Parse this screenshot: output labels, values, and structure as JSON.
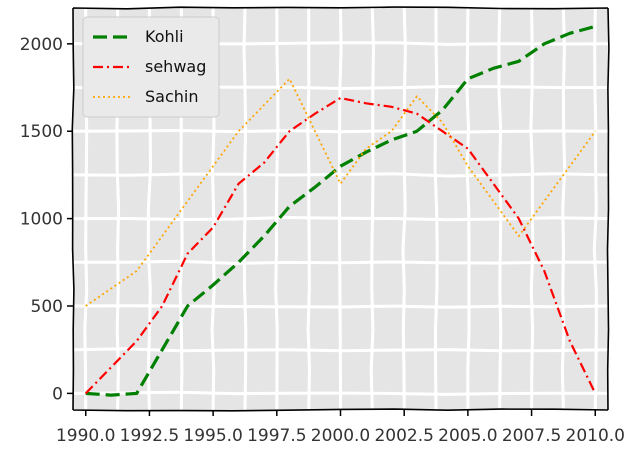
{
  "chart_data": {
    "type": "line",
    "title": "",
    "xlabel": "",
    "ylabel": "",
    "xlim": [
      1989.5,
      2010.5
    ],
    "ylim": [
      -95,
      2205
    ],
    "x_ticks": [
      1990.0,
      1992.5,
      1995.0,
      1997.5,
      2000.0,
      2002.5,
      2005.0,
      2007.5,
      2010.0
    ],
    "x_tick_labels": [
      "1990.0",
      "1992.5",
      "1995.0",
      "1997.5",
      "2000.0",
      "2002.5",
      "2005.0",
      "2007.5",
      "2010.0"
    ],
    "y_ticks": [
      0,
      500,
      1000,
      1500,
      2000
    ],
    "y_tick_labels": [
      "0",
      "500",
      "1000",
      "1500",
      "2000"
    ],
    "grid": true,
    "legend_position": "top-left",
    "series": [
      {
        "name": "Kohli",
        "color": "#008000",
        "line_style": "dashed",
        "x": [
          1990,
          1991,
          1992,
          1993,
          1994,
          1995,
          1996,
          1997,
          1998,
          1999,
          2000,
          2001,
          2002,
          2003,
          2004,
          2005,
          2006,
          2007,
          2008,
          2009,
          2010
        ],
        "y": [
          0,
          -10,
          0,
          250,
          500,
          620,
          750,
          900,
          1070,
          1180,
          1300,
          1380,
          1450,
          1500,
          1620,
          1800,
          1860,
          1900,
          2000,
          2060,
          2100
        ]
      },
      {
        "name": "sehwag",
        "color": "#ff0000",
        "line_style": "dashdot",
        "x": [
          1990,
          1991,
          1992,
          1993,
          1994,
          1995,
          1996,
          1997,
          1998,
          1999,
          2000,
          2001,
          2002,
          2003,
          2004,
          2005,
          2006,
          2007,
          2008,
          2009,
          2010
        ],
        "y": [
          0,
          150,
          300,
          500,
          800,
          950,
          1200,
          1320,
          1500,
          1600,
          1690,
          1660,
          1640,
          1600,
          1500,
          1400,
          1200,
          1000,
          700,
          300,
          0
        ]
      },
      {
        "name": "Sachin",
        "color": "#ffa500",
        "line_style": "dotted",
        "x": [
          1990,
          1991,
          1992,
          1993,
          1994,
          1995,
          1996,
          1997,
          1998,
          1999,
          2000,
          2001,
          2002,
          2003,
          2004,
          2005,
          2006,
          2007,
          2008,
          2009,
          2010
        ],
        "y": [
          500,
          600,
          700,
          900,
          1100,
          1300,
          1500,
          1650,
          1800,
          1500,
          1200,
          1400,
          1500,
          1700,
          1550,
          1300,
          1100,
          900,
          1100,
          1300,
          1500
        ]
      }
    ]
  }
}
